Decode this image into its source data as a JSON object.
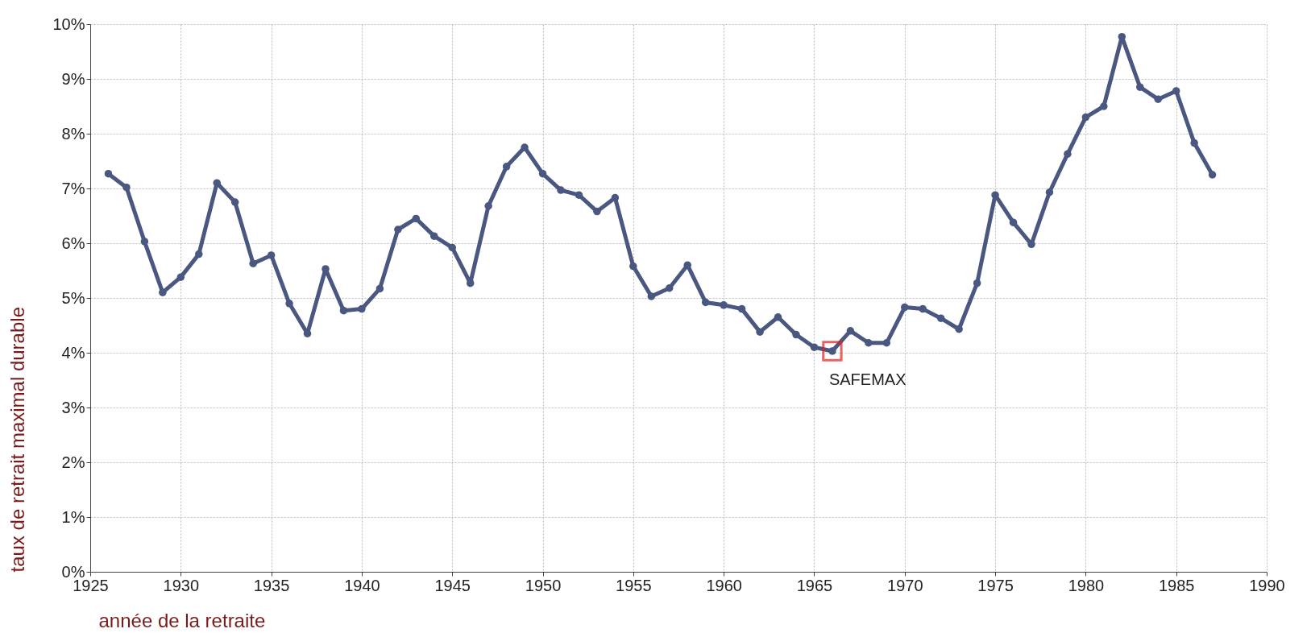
{
  "chart_data": {
    "type": "line",
    "xlabel": "année de la retraite",
    "ylabel": "taux de retrait maximal durable",
    "x": [
      1926,
      1927,
      1928,
      1929,
      1930,
      1931,
      1932,
      1933,
      1934,
      1935,
      1936,
      1937,
      1938,
      1939,
      1940,
      1941,
      1942,
      1943,
      1944,
      1945,
      1946,
      1947,
      1948,
      1949,
      1950,
      1951,
      1952,
      1953,
      1954,
      1955,
      1956,
      1957,
      1958,
      1959,
      1960,
      1961,
      1962,
      1963,
      1964,
      1965,
      1966,
      1967,
      1968,
      1969,
      1970,
      1971,
      1972,
      1973,
      1974,
      1975,
      1976,
      1977,
      1978,
      1979,
      1980,
      1981,
      1982,
      1983,
      1984,
      1985,
      1986,
      1987
    ],
    "series": [
      {
        "color": "#4a5780",
        "values": [
          7.27,
          7.02,
          6.03,
          5.1,
          5.38,
          5.8,
          7.1,
          6.75,
          5.63,
          5.78,
          4.9,
          4.35,
          5.53,
          4.77,
          4.8,
          5.17,
          6.25,
          6.45,
          6.13,
          5.92,
          5.27,
          6.68,
          7.4,
          7.75,
          7.27,
          6.97,
          6.88,
          6.58,
          6.83,
          5.58,
          5.03,
          5.18,
          5.6,
          4.92,
          4.87,
          4.8,
          4.38,
          4.65,
          4.33,
          4.1,
          4.03,
          4.4,
          4.18,
          4.18,
          4.83,
          4.8,
          4.63,
          4.43,
          5.27,
          6.88,
          6.38,
          5.98,
          6.93,
          7.63,
          8.3,
          8.5,
          9.77,
          8.85,
          8.63,
          8.78,
          7.83,
          7.25
        ]
      }
    ],
    "xlim": [
      1925,
      1990
    ],
    "xticks": [
      1925,
      1930,
      1935,
      1940,
      1945,
      1950,
      1955,
      1960,
      1965,
      1970,
      1975,
      1980,
      1985,
      1990
    ],
    "ylim": [
      0,
      10
    ],
    "yticks": [
      {
        "value": 0,
        "label": "0%"
      },
      {
        "value": 1,
        "label": "1%"
      },
      {
        "value": 2,
        "label": "2%"
      },
      {
        "value": 3,
        "label": "3%"
      },
      {
        "value": 4,
        "label": "4%"
      },
      {
        "value": 5,
        "label": "5%"
      },
      {
        "value": 6,
        "label": "6%"
      },
      {
        "value": 7,
        "label": "7%"
      },
      {
        "value": 8,
        "label": "8%"
      },
      {
        "value": 9,
        "label": "9%"
      },
      {
        "value": 10,
        "label": "10%"
      }
    ],
    "annotations": [
      {
        "text": "SAFEMAX",
        "x": 1966,
        "y": 4.03
      }
    ],
    "grid": true,
    "marker": "circle",
    "line_style": "solid"
  }
}
